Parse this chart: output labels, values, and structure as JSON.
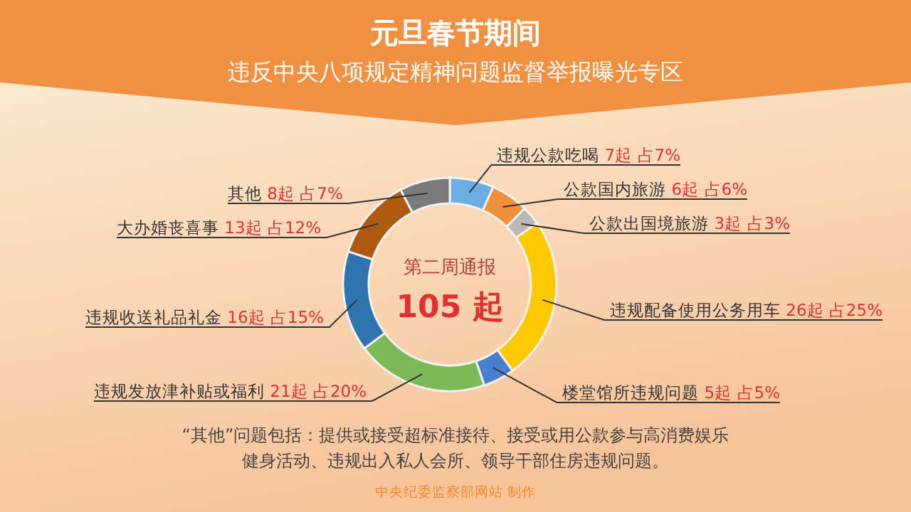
{
  "chart_data": {
    "type": "donut",
    "title": "元旦春节期间",
    "subtitle": "违反中央八项规定精神问题监督举报曝光专区",
    "categories": [
      "违规公款吃喝",
      "公款国内旅游",
      "公款出国境旅游",
      "违规配备使用公务用车",
      "楼堂馆所违规问题",
      "违规发放津补贴或福利",
      "违规收送礼品礼金",
      "大办婚丧喜事",
      "其他"
    ],
    "values": [
      7,
      6,
      3,
      26,
      5,
      21,
      16,
      13,
      8
    ],
    "colors": [
      "#6aaee2",
      "#f0903a",
      "#b8b8b8",
      "#ffc800",
      "#4a7fd0",
      "#7cba58",
      "#2e75b0",
      "#b05a10",
      "#7a7a7a"
    ],
    "value_labels": [
      "7起 占7%",
      "6起 占6%",
      "3起 占3%",
      "26起 占25%",
      "5起 占5%",
      "21起 占20%",
      "16起 占15%",
      "13起 占12%",
      "8起 占7%"
    ],
    "annotations": [
      "第二周通报",
      "105 起",
      "“其他”问题包括：提供或接受超标准接待、接受或用公款参与高消费娱乐健身活动、违规出入私人会所、领导干部住房违规问题。",
      "中央纪委监察部网站 制作"
    ]
  }
}
